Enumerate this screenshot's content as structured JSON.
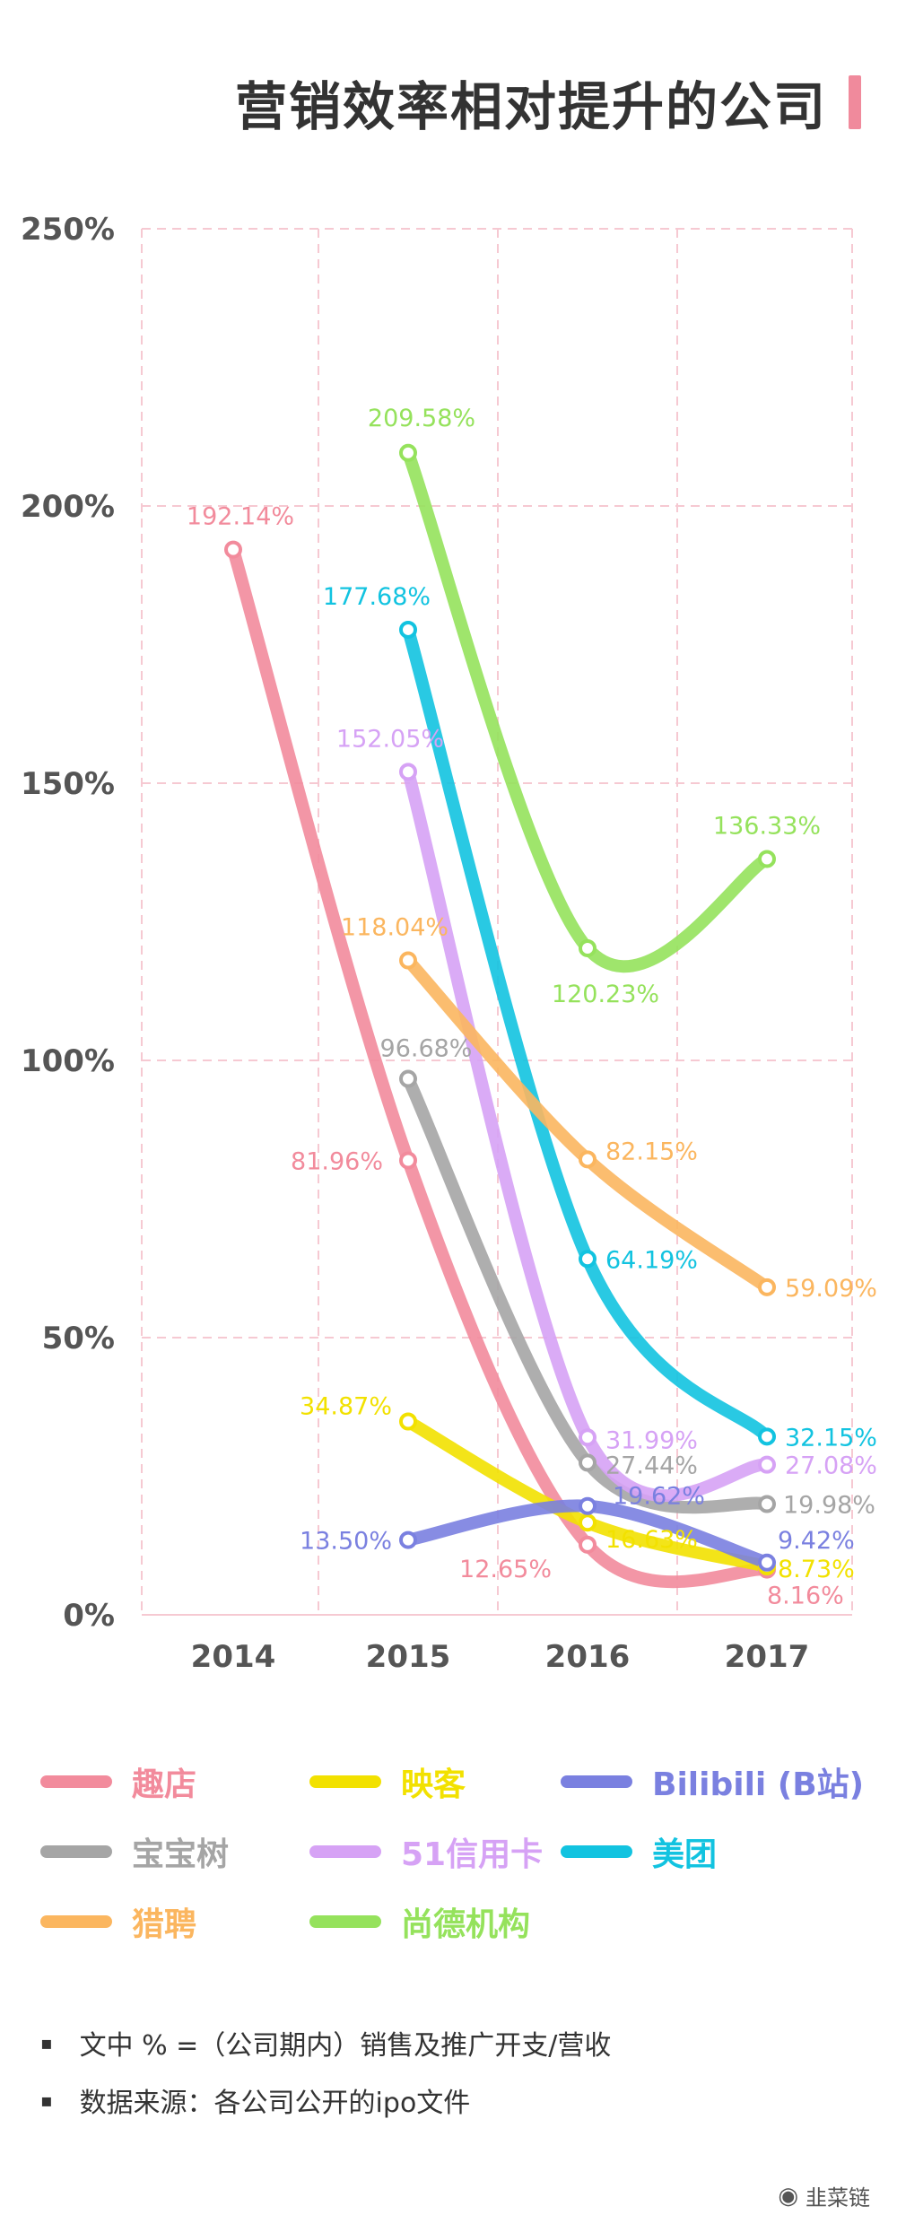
{
  "title": "营销效率相对提升的公司",
  "brand": {
    "icon": "wechat-icon",
    "name": "韭菜链"
  },
  "notes": [
    "文中 % =（公司期内）销售及推广开支/营收",
    "数据来源：各公司公开的ipo文件"
  ],
  "chart_data": {
    "type": "line",
    "x": [
      "2014",
      "2015",
      "2016",
      "2017"
    ],
    "yticks": [
      "0%",
      "50%",
      "100%",
      "150%",
      "200%",
      "250%"
    ],
    "ylim": [
      0,
      250
    ],
    "grid": true,
    "legend_position": "bottom",
    "series": [
      {
        "name": "趣店",
        "color": "#f28b9c",
        "values": [
          192.14,
          81.96,
          12.65,
          8.16
        ],
        "labels": [
          "192.14%",
          "81.96%",
          "12.65%",
          "8.16%"
        ]
      },
      {
        "name": "映客",
        "color": "#f2e100",
        "values": [
          null,
          34.87,
          16.63,
          8.73
        ],
        "labels": [
          "",
          "34.87%",
          "16.63%",
          "8.73%"
        ]
      },
      {
        "name": "Bilibili (B站)",
        "color": "#7a80e0",
        "values": [
          null,
          13.5,
          19.62,
          9.42
        ],
        "labels": [
          "",
          "13.50%",
          "19.62%",
          "9.42%"
        ]
      },
      {
        "name": "宝宝树",
        "color": "#a5a5a5",
        "values": [
          null,
          96.68,
          27.44,
          19.98
        ],
        "labels": [
          "",
          "96.68%",
          "27.44%",
          "19.98%"
        ]
      },
      {
        "name": "51信用卡",
        "color": "#d6a2f5",
        "values": [
          null,
          152.05,
          31.99,
          27.08
        ],
        "labels": [
          "",
          "152.05%",
          "31.99%",
          "27.08%"
        ]
      },
      {
        "name": "美团",
        "color": "#12c3e0",
        "values": [
          null,
          177.68,
          64.19,
          32.15
        ],
        "labels": [
          "",
          "177.68%",
          "64.19%",
          "32.15%"
        ]
      },
      {
        "name": "猎聘",
        "color": "#fbb65f",
        "values": [
          null,
          118.04,
          82.15,
          59.09
        ],
        "labels": [
          "",
          "118.04%",
          "82.15%",
          "59.09%"
        ]
      },
      {
        "name": "尚德机构",
        "color": "#95e25c",
        "values": [
          null,
          209.58,
          120.23,
          136.33
        ],
        "labels": [
          "",
          "209.58%",
          "120.23%",
          "136.33%"
        ]
      }
    ]
  }
}
